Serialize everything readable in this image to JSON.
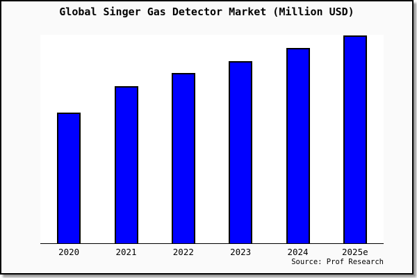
{
  "page": {
    "title": "Global Singer Gas Detector Market (Million USD)",
    "source": "Source: Prof Research"
  },
  "colors": {
    "bar_fill": "#0000ff",
    "bar_border": "#000000",
    "card_background": "#fafafa",
    "plot_background": "#ffffff",
    "axis": "#000000",
    "text": "#000000",
    "shadow": "#9a9a9a"
  },
  "chart_data": {
    "type": "bar",
    "title": "Global Singer Gas Detector Market (Million USD)",
    "categories": [
      "2020",
      "2021",
      "2022",
      "2023",
      "2024",
      "2025e"
    ],
    "values": [
      62.8,
      75.2,
      81.6,
      87.5,
      93.7,
      99.7
    ],
    "value_scale": "relative (y-axis unlabeled; plot-area top = 100)",
    "xlabel": "",
    "ylabel": "",
    "ylim": [
      0,
      100
    ],
    "grid": false,
    "legend": false,
    "y_axis_ticks_visible": false,
    "x_axis_line": true,
    "annotation": "Source: Prof Research"
  }
}
